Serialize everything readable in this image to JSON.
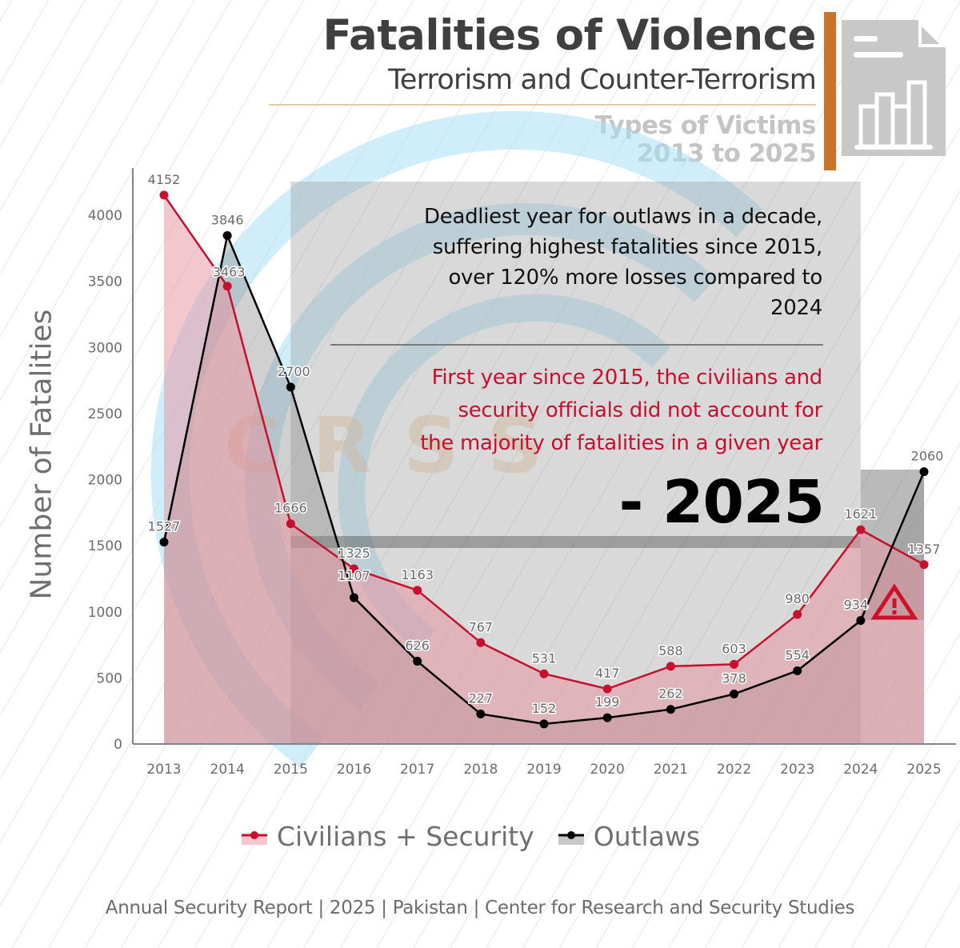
{
  "header": {
    "title": "Fatalities of Violence",
    "subtitle": "Terrorism and Counter-Terrorism",
    "types_line1": "Types of Victims",
    "types_line2": "2013 to 2025",
    "icon": "report-bar-chart-icon"
  },
  "annotations": {
    "note1": "Deadliest year for outlaws in a decade, suffering highest fatalities since 2015, over 120% more losses compared to 2024",
    "note1_lines": [
      "Deadliest year for outlaws in a decade,",
      "suffering highest fatalities since 2015,",
      "over 120% more losses compared to",
      "2024"
    ],
    "note2_lines": [
      "First year since 2015, the civilians and",
      "security officials did not account for",
      "the majority of fatalities in a given year"
    ],
    "year_callout": "- 2025",
    "warning_icon": "warning-triangle-icon",
    "watermark": "CRSS"
  },
  "legend": {
    "items": [
      {
        "label": "Civilians + Security",
        "color": "#c8102e",
        "fill": "#f4c6cd"
      },
      {
        "label": "Outlaws",
        "color": "#000000",
        "fill": "#c8c8c8"
      }
    ]
  },
  "footer": {
    "text": "Annual Security Report | 2025 | Pakistan | Center for Research and Security Studies"
  },
  "colors": {
    "civilians_line": "#c8102e",
    "outlaws_line": "#000000",
    "accent_orange": "#c8742e",
    "title": "#3f3f3f"
  },
  "chart_data": {
    "type": "area",
    "title": "Fatalities of Violence",
    "subtitle": "Terrorism and Counter-Terrorism — Types of Victims 2013 to 2025",
    "xlabel": "",
    "ylabel": "Number of Fatalities",
    "ylim": [
      0,
      4300
    ],
    "yticks": [
      0,
      500,
      1000,
      1500,
      2000,
      2500,
      3000,
      3500,
      4000
    ],
    "categories": [
      "2013",
      "2014",
      "2015",
      "2016",
      "2017",
      "2018",
      "2019",
      "2020",
      "2021",
      "2022",
      "2023",
      "2024",
      "2025"
    ],
    "series": [
      {
        "name": "Civilians + Security",
        "values": [
          4152,
          3463,
          1666,
          1325,
          1163,
          767,
          531,
          417,
          588,
          603,
          980,
          1621,
          1357
        ]
      },
      {
        "name": "Outlaws",
        "values": [
          1527,
          3846,
          2700,
          1107,
          626,
          227,
          152,
          199,
          262,
          378,
          554,
          934,
          2060
        ]
      }
    ],
    "grid": false,
    "legend_position": "bottom-center",
    "highlight_ranges": [
      {
        "from": "2015",
        "to": "2024",
        "label": "annotation box"
      },
      {
        "from": "2024",
        "to": "2025",
        "label": "2025 highlight"
      }
    ]
  }
}
